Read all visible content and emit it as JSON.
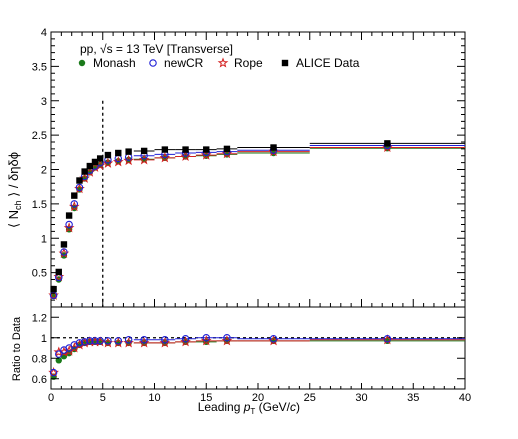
{
  "colors": {
    "monash": "#1a7a1a",
    "newcr": "#1f1fd6",
    "rope": "#d42020",
    "data": "#000000",
    "axis": "#000000",
    "ref_line": "#000000"
  },
  "chart_data": [
    {
      "type": "scatter",
      "annotation": "pp, √s = 13 TeV [Transverse]",
      "ylabel": "⟨ N_ch ⟩ / δηδϕ",
      "xlim": [
        0,
        40
      ],
      "ylim": [
        0,
        4
      ],
      "yticks": [
        "0.5",
        "1",
        "1.5",
        "2",
        "2.5",
        "3",
        "3.5",
        "4"
      ],
      "legend": [
        {
          "key": "monash",
          "label": "Monash",
          "marker": "filled-circle"
        },
        {
          "key": "newcr",
          "label": "newCR",
          "marker": "open-circle"
        },
        {
          "key": "rope",
          "label": "Rope",
          "marker": "open-star"
        },
        {
          "key": "data",
          "label": "ALICE Data",
          "marker": "filled-square"
        }
      ],
      "vertical_line_x": 5,
      "x": [
        0.25,
        0.75,
        1.25,
        1.75,
        2.25,
        2.75,
        3.25,
        3.75,
        4.25,
        4.75,
        5.5,
        6.5,
        7.5,
        9,
        11,
        13,
        15,
        17,
        21.5,
        32.5
      ],
      "x_bins": [
        [
          0,
          0.5
        ],
        [
          0.5,
          1
        ],
        [
          1,
          1.5
        ],
        [
          1.5,
          2
        ],
        [
          2,
          2.5
        ],
        [
          2.5,
          3
        ],
        [
          3,
          3.5
        ],
        [
          3.5,
          4
        ],
        [
          4,
          4.5
        ],
        [
          4.5,
          5
        ],
        [
          5,
          6
        ],
        [
          6,
          7
        ],
        [
          7,
          8
        ],
        [
          8,
          10
        ],
        [
          10,
          12
        ],
        [
          12,
          14
        ],
        [
          14,
          16
        ],
        [
          16,
          18
        ],
        [
          18,
          25
        ],
        [
          25,
          40
        ]
      ],
      "series": [
        {
          "key": "data",
          "name": "ALICE Data",
          "values": [
            0.26,
            0.51,
            0.91,
            1.33,
            1.62,
            1.84,
            1.97,
            2.05,
            2.11,
            2.16,
            2.21,
            2.24,
            2.26,
            2.27,
            2.29,
            2.29,
            2.29,
            2.3,
            2.32,
            2.38
          ]
        },
        {
          "key": "newcr",
          "name": "newCR",
          "values": [
            0.17,
            0.43,
            0.8,
            1.2,
            1.5,
            1.74,
            1.9,
            1.99,
            2.05,
            2.1,
            2.14,
            2.16,
            2.18,
            2.2,
            2.22,
            2.24,
            2.25,
            2.26,
            2.28,
            2.35
          ]
        },
        {
          "key": "rope",
          "name": "Rope",
          "values": [
            0.17,
            0.44,
            0.78,
            1.15,
            1.46,
            1.72,
            1.87,
            1.96,
            2.03,
            2.06,
            2.09,
            2.11,
            2.13,
            2.14,
            2.17,
            2.19,
            2.21,
            2.23,
            2.26,
            2.32
          ]
        },
        {
          "key": "monash",
          "name": "Monash",
          "values": [
            0.16,
            0.4,
            0.75,
            1.13,
            1.44,
            1.71,
            1.87,
            1.96,
            2.03,
            2.07,
            2.1,
            2.12,
            2.14,
            2.15,
            2.17,
            2.19,
            2.2,
            2.22,
            2.24,
            2.31
          ]
        }
      ]
    },
    {
      "type": "scatter",
      "ylabel": "Ratio to Data",
      "xlabel": "Leading p_T (GeV/c)",
      "xlim": [
        0,
        40
      ],
      "ylim": [
        0.5,
        1.3
      ],
      "yticks": [
        "0.6",
        "0.8",
        "1",
        "1.2"
      ],
      "xticks": [
        "0",
        "5",
        "10",
        "15",
        "20",
        "25",
        "30",
        "35",
        "40"
      ],
      "reference_line_y": 1,
      "x": [
        0.25,
        0.75,
        1.25,
        1.75,
        2.25,
        2.75,
        3.25,
        3.75,
        4.25,
        4.75,
        5.5,
        6.5,
        7.5,
        9,
        11,
        13,
        15,
        17,
        21.5,
        32.5
      ],
      "series": [
        {
          "key": "newcr",
          "name": "newCR",
          "values": [
            0.66,
            0.84,
            0.88,
            0.9,
            0.93,
            0.95,
            0.96,
            0.97,
            0.97,
            0.97,
            0.97,
            0.97,
            0.98,
            0.98,
            0.98,
            0.99,
            1.0,
            1.0,
            0.99,
            0.99
          ]
        },
        {
          "key": "rope",
          "name": "Rope",
          "values": [
            0.66,
            0.86,
            0.86,
            0.87,
            0.9,
            0.93,
            0.95,
            0.96,
            0.96,
            0.96,
            0.95,
            0.95,
            0.95,
            0.95,
            0.95,
            0.96,
            0.97,
            0.97,
            0.97,
            0.98
          ]
        },
        {
          "key": "monash",
          "name": "Monash",
          "values": [
            0.62,
            0.78,
            0.82,
            0.85,
            0.89,
            0.93,
            0.95,
            0.96,
            0.96,
            0.96,
            0.95,
            0.95,
            0.95,
            0.95,
            0.95,
            0.96,
            0.96,
            0.97,
            0.97,
            0.97
          ]
        }
      ]
    }
  ]
}
